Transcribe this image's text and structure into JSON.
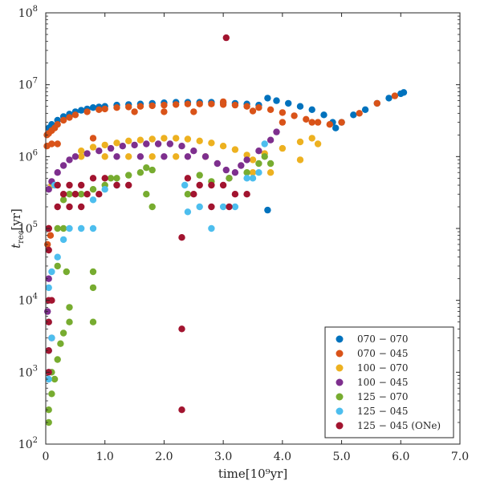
{
  "chart_data": {
    "type": "scatter",
    "title": "",
    "xlabel": "time[10⁹yr]",
    "ylabel_main": "t",
    "ylabel_sub": "rec",
    "ylabel_unit": "[yr]",
    "xlim": [
      0,
      7
    ],
    "ylim": [
      100,
      100000000
    ],
    "yscale": "log",
    "grid": false,
    "legend_position": "bottom-right",
    "x_ticks": [
      {
        "value": 0,
        "label": "0"
      },
      {
        "value": 1,
        "label": "1.0"
      },
      {
        "value": 2,
        "label": "2.0"
      },
      {
        "value": 3,
        "label": "3.0"
      },
      {
        "value": 4,
        "label": "4.0"
      },
      {
        "value": 5,
        "label": "5.0"
      },
      {
        "value": 6,
        "label": "6.0"
      },
      {
        "value": 7,
        "label": "7.0"
      }
    ],
    "y_ticks": [
      {
        "value": 100,
        "base": "10",
        "exp": "2"
      },
      {
        "value": 1000,
        "base": "10",
        "exp": "3"
      },
      {
        "value": 10000,
        "base": "10",
        "exp": "4"
      },
      {
        "value": 100000,
        "base": "10",
        "exp": "5"
      },
      {
        "value": 1000000,
        "base": "10",
        "exp": "6"
      },
      {
        "value": 10000000,
        "base": "10",
        "exp": "7"
      },
      {
        "value": 100000000,
        "base": "10",
        "exp": "8"
      }
    ],
    "series": [
      {
        "name": "070 − 070",
        "color": "#0072BD",
        "points": [
          [
            0.05,
            2500000
          ],
          [
            0.1,
            2800000
          ],
          [
            0.2,
            3200000
          ],
          [
            0.3,
            3600000
          ],
          [
            0.4,
            3900000
          ],
          [
            0.5,
            4200000
          ],
          [
            0.6,
            4400000
          ],
          [
            0.7,
            4600000
          ],
          [
            0.8,
            4800000
          ],
          [
            0.9,
            4900000
          ],
          [
            1.0,
            5000000
          ],
          [
            1.2,
            5200000
          ],
          [
            1.4,
            5300000
          ],
          [
            1.6,
            5400000
          ],
          [
            1.8,
            5500000
          ],
          [
            2.0,
            5600000
          ],
          [
            2.2,
            5700000
          ],
          [
            2.4,
            5700000
          ],
          [
            2.6,
            5700000
          ],
          [
            2.8,
            5700000
          ],
          [
            3.0,
            5600000
          ],
          [
            3.2,
            5500000
          ],
          [
            3.4,
            5400000
          ],
          [
            3.6,
            5200000
          ],
          [
            3.75,
            6500000
          ],
          [
            3.9,
            6000000
          ],
          [
            4.1,
            5500000
          ],
          [
            4.3,
            5000000
          ],
          [
            4.5,
            4500000
          ],
          [
            4.7,
            3800000
          ],
          [
            4.85,
            3000000
          ],
          [
            4.9,
            2500000
          ],
          [
            5.0,
            3000000
          ],
          [
            5.2,
            3800000
          ],
          [
            5.4,
            4500000
          ],
          [
            5.6,
            5500000
          ],
          [
            5.8,
            6500000
          ],
          [
            6.0,
            7500000
          ],
          [
            6.05,
            7800000
          ],
          [
            3.75,
            180000
          ]
        ]
      },
      {
        "name": "070 − 045",
        "color": "#D95319",
        "points": [
          [
            0.02,
            2000000
          ],
          [
            0.05,
            2100000
          ],
          [
            0.1,
            2300000
          ],
          [
            0.15,
            2500000
          ],
          [
            0.2,
            2800000
          ],
          [
            0.3,
            3200000
          ],
          [
            0.4,
            3500000
          ],
          [
            0.5,
            3800000
          ],
          [
            0.7,
            4200000
          ],
          [
            0.9,
            4500000
          ],
          [
            1.0,
            4600000
          ],
          [
            1.2,
            4800000
          ],
          [
            1.4,
            4900000
          ],
          [
            1.6,
            5000000
          ],
          [
            1.8,
            5100000
          ],
          [
            2.0,
            5200000
          ],
          [
            2.2,
            5300000
          ],
          [
            2.4,
            5400000
          ],
          [
            2.6,
            5400000
          ],
          [
            2.8,
            5400000
          ],
          [
            3.0,
            5300000
          ],
          [
            3.2,
            5200000
          ],
          [
            3.4,
            5000000
          ],
          [
            3.6,
            4800000
          ],
          [
            3.8,
            4500000
          ],
          [
            4.0,
            4100000
          ],
          [
            4.2,
            3700000
          ],
          [
            4.4,
            3300000
          ],
          [
            4.6,
            3000000
          ],
          [
            4.8,
            2800000
          ],
          [
            5.0,
            3000000
          ],
          [
            5.3,
            4000000
          ],
          [
            5.6,
            5500000
          ],
          [
            5.9,
            7000000
          ],
          [
            1.5,
            4200000
          ],
          [
            2.0,
            4200000
          ],
          [
            2.5,
            4200000
          ],
          [
            3.0,
            5800000
          ],
          [
            3.5,
            4300000
          ],
          [
            4.0,
            3000000
          ],
          [
            4.5,
            3000000
          ],
          [
            0.02,
            1400000
          ],
          [
            0.1,
            1500000
          ],
          [
            0.2,
            1500000
          ],
          [
            0.8,
            1800000
          ],
          [
            0.05,
            100000
          ],
          [
            0.08,
            80000
          ],
          [
            0.03,
            60000
          ]
        ]
      },
      {
        "name": "100 − 070",
        "color": "#EDB120",
        "points": [
          [
            0.6,
            1200000
          ],
          [
            0.8,
            1350000
          ],
          [
            1.0,
            1450000
          ],
          [
            1.2,
            1550000
          ],
          [
            1.4,
            1650000
          ],
          [
            1.6,
            1700000
          ],
          [
            1.8,
            1750000
          ],
          [
            2.0,
            1800000
          ],
          [
            2.2,
            1800000
          ],
          [
            2.4,
            1750000
          ],
          [
            2.6,
            1650000
          ],
          [
            2.8,
            1550000
          ],
          [
            3.0,
            1400000
          ],
          [
            3.2,
            1250000
          ],
          [
            3.4,
            1050000
          ],
          [
            3.5,
            900000
          ],
          [
            3.7,
            1100000
          ],
          [
            4.0,
            1300000
          ],
          [
            4.3,
            1600000
          ],
          [
            4.5,
            1800000
          ],
          [
            4.3,
            900000
          ],
          [
            4.6,
            1500000
          ],
          [
            0.6,
            1000000
          ],
          [
            1.0,
            1000000
          ],
          [
            1.4,
            1000000
          ],
          [
            1.8,
            1000000
          ],
          [
            2.2,
            1000000
          ],
          [
            2.7,
            1000000
          ],
          [
            3.5,
            600000
          ],
          [
            3.8,
            600000
          ],
          [
            0.1,
            400000
          ]
        ]
      },
      {
        "name": "100 − 045",
        "color": "#7E2F8E",
        "points": [
          [
            0.05,
            350000
          ],
          [
            0.1,
            450000
          ],
          [
            0.2,
            600000
          ],
          [
            0.3,
            750000
          ],
          [
            0.4,
            900000
          ],
          [
            0.5,
            1000000
          ],
          [
            0.7,
            1100000
          ],
          [
            0.9,
            1200000
          ],
          [
            1.1,
            1300000
          ],
          [
            1.3,
            1400000
          ],
          [
            1.5,
            1450000
          ],
          [
            1.7,
            1500000
          ],
          [
            1.9,
            1500000
          ],
          [
            2.1,
            1500000
          ],
          [
            2.3,
            1400000
          ],
          [
            2.5,
            1200000
          ],
          [
            2.7,
            1000000
          ],
          [
            2.9,
            800000
          ],
          [
            3.05,
            650000
          ],
          [
            3.1,
            500000
          ],
          [
            3.2,
            600000
          ],
          [
            3.3,
            750000
          ],
          [
            3.4,
            900000
          ],
          [
            3.6,
            1200000
          ],
          [
            3.8,
            1700000
          ],
          [
            3.9,
            2200000
          ],
          [
            1.2,
            1000000
          ],
          [
            1.6,
            1000000
          ],
          [
            2.0,
            1000000
          ],
          [
            2.4,
            1000000
          ],
          [
            0.05,
            20000
          ],
          [
            0.03,
            7000
          ],
          [
            0.1,
            3000
          ],
          [
            0.05,
            2000
          ]
        ]
      },
      {
        "name": "125 − 070",
        "color": "#77AC30",
        "points": [
          [
            0.3,
            250000
          ],
          [
            0.4,
            300000
          ],
          [
            0.5,
            300000
          ],
          [
            0.6,
            300000
          ],
          [
            0.8,
            350000
          ],
          [
            1.0,
            400000
          ],
          [
            1.1,
            500000
          ],
          [
            1.2,
            500000
          ],
          [
            1.4,
            550000
          ],
          [
            1.6,
            600000
          ],
          [
            1.7,
            700000
          ],
          [
            1.8,
            650000
          ],
          [
            1.7,
            300000
          ],
          [
            1.8,
            200000
          ],
          [
            3.1,
            500000
          ],
          [
            3.4,
            600000
          ],
          [
            3.6,
            800000
          ],
          [
            3.7,
            1000000
          ],
          [
            3.8,
            800000
          ],
          [
            2.8,
            450000
          ],
          [
            2.6,
            550000
          ],
          [
            2.4,
            300000
          ],
          [
            0.8,
            25000
          ],
          [
            0.8,
            15000
          ],
          [
            0.8,
            5000
          ],
          [
            0.2,
            100000
          ],
          [
            0.3,
            100000
          ],
          [
            0.35,
            25000
          ],
          [
            0.4,
            8000
          ],
          [
            0.4,
            5000
          ],
          [
            0.3,
            3500
          ],
          [
            0.25,
            2500
          ],
          [
            0.2,
            1500
          ],
          [
            0.15,
            800
          ],
          [
            0.1,
            500
          ],
          [
            0.05,
            300
          ],
          [
            0.05,
            200
          ],
          [
            0.1,
            1000
          ],
          [
            0.2,
            30000
          ]
        ]
      },
      {
        "name": "125 − 045",
        "color": "#4DBEEE",
        "points": [
          [
            0.05,
            15000
          ],
          [
            0.1,
            25000
          ],
          [
            0.2,
            40000
          ],
          [
            0.3,
            70000
          ],
          [
            0.4,
            100000
          ],
          [
            0.6,
            100000
          ],
          [
            0.8,
            100000
          ],
          [
            1.0,
            350000
          ],
          [
            1.2,
            400000
          ],
          [
            0.8,
            250000
          ],
          [
            2.35,
            400000
          ],
          [
            2.4,
            170000
          ],
          [
            2.6,
            200000
          ],
          [
            2.8,
            100000
          ],
          [
            3.0,
            200000
          ],
          [
            3.2,
            200000
          ],
          [
            3.4,
            500000
          ],
          [
            3.5,
            500000
          ],
          [
            3.6,
            600000
          ],
          [
            0.05,
            5000
          ],
          [
            0.05,
            2000
          ],
          [
            0.05,
            1000
          ],
          [
            0.1,
            3000
          ],
          [
            0.05,
            800
          ],
          [
            0.15,
            400000
          ],
          [
            3.7,
            1500000
          ]
        ]
      },
      {
        "name": "125 − 045 (ONe)",
        "color": "#A2142F",
        "points": [
          [
            3.05,
            45000000
          ],
          [
            0.2,
            400000
          ],
          [
            0.4,
            400000
          ],
          [
            0.6,
            400000
          ],
          [
            0.8,
            500000
          ],
          [
            1.0,
            500000
          ],
          [
            1.2,
            400000
          ],
          [
            1.4,
            400000
          ],
          [
            0.3,
            300000
          ],
          [
            0.5,
            300000
          ],
          [
            0.7,
            300000
          ],
          [
            0.9,
            300000
          ],
          [
            0.2,
            200000
          ],
          [
            0.4,
            200000
          ],
          [
            0.6,
            200000
          ],
          [
            2.4,
            500000
          ],
          [
            2.6,
            400000
          ],
          [
            2.8,
            400000
          ],
          [
            3.0,
            400000
          ],
          [
            3.2,
            300000
          ],
          [
            3.4,
            300000
          ],
          [
            2.5,
            300000
          ],
          [
            2.8,
            200000
          ],
          [
            3.1,
            200000
          ],
          [
            2.3,
            75000
          ],
          [
            2.3,
            4000
          ],
          [
            2.3,
            300
          ],
          [
            0.05,
            100000
          ],
          [
            0.05,
            50000
          ],
          [
            0.05,
            10000
          ],
          [
            0.1,
            10000
          ],
          [
            0.05,
            5000
          ],
          [
            0.05,
            2000
          ],
          [
            0.05,
            1000
          ]
        ]
      }
    ]
  }
}
